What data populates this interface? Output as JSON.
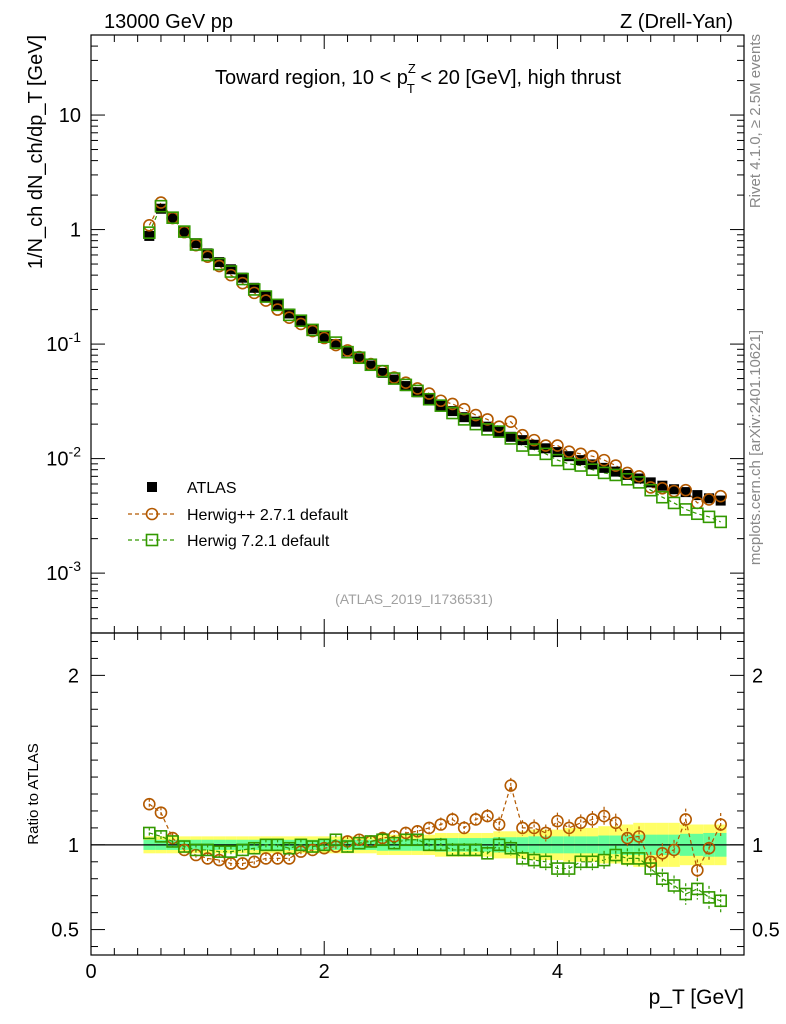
{
  "header": {
    "energy_label": "13000 GeV pp",
    "process_label": "Z (Drell-Yan)",
    "title_prefix": "Toward region, 10 < p",
    "title_sup": "Z",
    "title_sub": "T",
    "title_suffix": " < 20 [GeV], high thrust",
    "watermark": "(ATLAS_2019_I1736531)",
    "side_label_top": "Rivet 4.1.0, ≥ 2.5M events",
    "side_label_bottom": "mcplots.cern.ch [arXiv:2401.10621]"
  },
  "chart_data": [
    {
      "type": "scatter",
      "panel": "main",
      "yscale": "log",
      "ylabel": "1/N_ch dN_ch/dp_T [GeV]",
      "xlabel": "p_T [GeV]",
      "xlim": [
        0,
        5.6
      ],
      "ylim": [
        0.0003,
        50
      ],
      "yticks": [
        {
          "label": "10",
          "value": 10
        },
        {
          "label": "1",
          "value": 1
        },
        {
          "label": "10^-1",
          "value": 0.1
        },
        {
          "label": "10^-2",
          "value": 0.01
        },
        {
          "label": "10^-3",
          "value": 0.001
        }
      ],
      "xticks": [
        "0",
        "2",
        "4"
      ],
      "x": [
        0.5,
        0.6,
        0.7,
        0.8,
        0.9,
        1.0,
        1.1,
        1.2,
        1.3,
        1.4,
        1.5,
        1.6,
        1.7,
        1.8,
        1.9,
        2.0,
        2.1,
        2.2,
        2.3,
        2.4,
        2.5,
        2.6,
        2.7,
        2.8,
        2.9,
        3.0,
        3.1,
        3.2,
        3.3,
        3.4,
        3.5,
        3.6,
        3.7,
        3.8,
        3.9,
        4.0,
        4.1,
        4.2,
        4.3,
        4.4,
        4.5,
        4.6,
        4.7,
        4.8,
        4.9,
        5.0,
        5.1,
        5.2,
        5.3,
        5.4
      ],
      "series": [
        {
          "name": "ATLAS",
          "marker": "filled-square",
          "color": "#000000",
          "values": [
            0.88,
            1.52,
            1.25,
            0.96,
            0.76,
            0.62,
            0.52,
            0.45,
            0.38,
            0.31,
            0.26,
            0.22,
            0.185,
            0.16,
            0.135,
            0.116,
            0.1,
            0.086,
            0.075,
            0.065,
            0.056,
            0.049,
            0.043,
            0.038,
            0.033,
            0.029,
            0.026,
            0.023,
            0.021,
            0.019,
            0.0172,
            0.0155,
            0.0145,
            0.0132,
            0.0123,
            0.0114,
            0.0105,
            0.0097,
            0.0089,
            0.0083,
            0.0077,
            0.0072,
            0.0067,
            0.0062,
            0.0058,
            0.0054,
            0.0051,
            0.0048,
            0.0045,
            0.0043
          ]
        },
        {
          "name": "Herwig++ 2.7.1 default",
          "marker": "open-circle",
          "color": "#b35900",
          "values": [
            1.09,
            1.72,
            1.26,
            0.95,
            0.73,
            0.58,
            0.48,
            0.4,
            0.34,
            0.28,
            0.24,
            0.2,
            0.17,
            0.15,
            0.13,
            0.113,
            0.098,
            0.088,
            0.077,
            0.067,
            0.058,
            0.051,
            0.046,
            0.041,
            0.037,
            0.032,
            0.03,
            0.027,
            0.024,
            0.022,
            0.019,
            0.021,
            0.016,
            0.0145,
            0.013,
            0.013,
            0.0115,
            0.011,
            0.0105,
            0.0097,
            0.0087,
            0.0075,
            0.007,
            0.0056,
            0.0055,
            0.0052,
            0.0053,
            0.0041,
            0.0044,
            0.0047
          ]
        },
        {
          "name": "Herwig 7.2.1 default",
          "marker": "open-square",
          "color": "#339900",
          "values": [
            0.94,
            1.6,
            1.27,
            0.96,
            0.74,
            0.6,
            0.5,
            0.43,
            0.37,
            0.3,
            0.26,
            0.22,
            0.18,
            0.16,
            0.133,
            0.116,
            0.103,
            0.085,
            0.076,
            0.066,
            0.058,
            0.05,
            0.044,
            0.039,
            0.033,
            0.029,
            0.025,
            0.022,
            0.02,
            0.018,
            0.0172,
            0.015,
            0.013,
            0.012,
            0.011,
            0.0097,
            0.009,
            0.0087,
            0.008,
            0.0075,
            0.0072,
            0.0066,
            0.0062,
            0.0053,
            0.0046,
            0.0041,
            0.0036,
            0.0033,
            0.0031,
            0.0028
          ]
        }
      ]
    },
    {
      "type": "scatter",
      "panel": "ratio",
      "ylabel": "Ratio to ATLAS",
      "xlabel": "p_T [GeV]",
      "xlim": [
        0,
        5.6
      ],
      "ylim": [
        0.35,
        2.25
      ],
      "yticks": [
        "0.5",
        "1",
        "2"
      ],
      "xticks": [
        "0",
        "2",
        "4"
      ],
      "x": [
        0.5,
        0.6,
        0.7,
        0.8,
        0.9,
        1.0,
        1.1,
        1.2,
        1.3,
        1.4,
        1.5,
        1.6,
        1.7,
        1.8,
        1.9,
        2.0,
        2.1,
        2.2,
        2.3,
        2.4,
        2.5,
        2.6,
        2.7,
        2.8,
        2.9,
        3.0,
        3.1,
        3.2,
        3.3,
        3.4,
        3.5,
        3.6,
        3.7,
        3.8,
        3.9,
        4.0,
        4.1,
        4.2,
        4.3,
        4.4,
        4.5,
        4.6,
        4.7,
        4.8,
        4.9,
        5.0,
        5.1,
        5.2,
        5.3,
        5.4
      ],
      "band_inner": [
        0.03,
        0.03,
        0.03,
        0.03,
        0.03,
        0.03,
        0.03,
        0.03,
        0.03,
        0.03,
        0.03,
        0.03,
        0.03,
        0.03,
        0.03,
        0.03,
        0.03,
        0.03,
        0.03,
        0.03,
        0.035,
        0.035,
        0.035,
        0.035,
        0.035,
        0.04,
        0.04,
        0.04,
        0.04,
        0.04,
        0.045,
        0.045,
        0.045,
        0.05,
        0.05,
        0.05,
        0.05,
        0.05,
        0.05,
        0.055,
        0.055,
        0.06,
        0.06,
        0.06,
        0.06,
        0.06,
        0.065,
        0.065,
        0.07,
        0.07
      ],
      "band_outer": [
        0.05,
        0.05,
        0.05,
        0.05,
        0.05,
        0.05,
        0.05,
        0.05,
        0.05,
        0.05,
        0.05,
        0.05,
        0.05,
        0.05,
        0.05,
        0.05,
        0.05,
        0.05,
        0.05,
        0.05,
        0.06,
        0.06,
        0.06,
        0.06,
        0.06,
        0.07,
        0.07,
        0.07,
        0.07,
        0.07,
        0.08,
        0.08,
        0.08,
        0.09,
        0.09,
        0.09,
        0.1,
        0.1,
        0.1,
        0.11,
        0.11,
        0.12,
        0.13,
        0.13,
        0.13,
        0.13,
        0.12,
        0.12,
        0.12,
        0.12
      ],
      "band_colors": {
        "inner": "#66ff99",
        "outer": "#ffff66"
      },
      "series": [
        {
          "name": "Herwig++ 2.7.1 default",
          "marker": "open-circle",
          "color": "#b35900",
          "values": [
            1.24,
            1.19,
            1.04,
            0.97,
            0.94,
            0.92,
            0.91,
            0.89,
            0.89,
            0.9,
            0.92,
            0.92,
            0.92,
            0.96,
            0.97,
            0.98,
            0.99,
            1.02,
            1.03,
            1.02,
            1.04,
            1.05,
            1.07,
            1.08,
            1.1,
            1.12,
            1.15,
            1.1,
            1.15,
            1.17,
            1.12,
            1.35,
            1.1,
            1.1,
            1.07,
            1.14,
            1.1,
            1.13,
            1.15,
            1.17,
            1.13,
            1.04,
            1.05,
            0.9,
            0.95,
            0.97,
            1.15,
            0.85,
            0.98,
            1.12
          ]
        },
        {
          "name": "Herwig 7.2.1 default",
          "marker": "open-square",
          "color": "#339900",
          "values": [
            1.07,
            1.05,
            1.02,
            0.99,
            0.97,
            0.97,
            0.96,
            0.96,
            0.97,
            0.98,
            1.0,
            1.0,
            0.98,
            1.0,
            0.99,
            1.0,
            1.03,
            0.99,
            1.01,
            1.02,
            1.03,
            1.01,
            1.03,
            1.03,
            1.0,
            1.0,
            0.97,
            0.97,
            0.97,
            0.95,
            1.0,
            0.98,
            0.92,
            0.91,
            0.9,
            0.86,
            0.86,
            0.9,
            0.9,
            0.91,
            0.94,
            0.92,
            0.92,
            0.86,
            0.8,
            0.76,
            0.71,
            0.74,
            0.69,
            0.67
          ]
        }
      ]
    }
  ],
  "legend": {
    "placement": "middle-left",
    "entries": [
      "ATLAS",
      "Herwig++ 2.7.1 default",
      "Herwig 7.2.1 default"
    ]
  }
}
